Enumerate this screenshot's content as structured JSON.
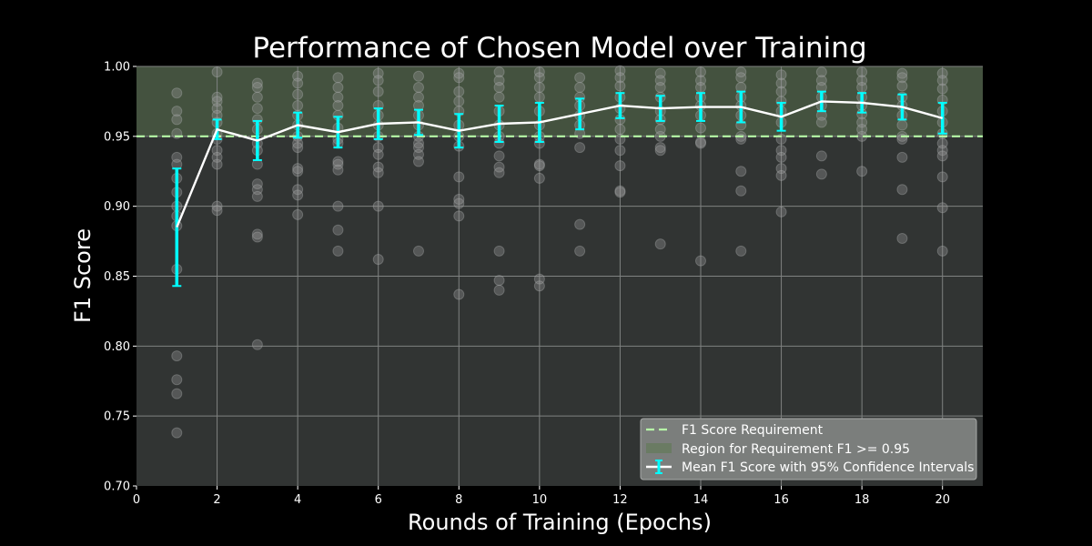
{
  "chart_data": {
    "type": "line",
    "title": "Performance of Chosen Model over Training",
    "xlabel": "Rounds of Training (Epochs)",
    "ylabel": "F1 Score",
    "xlim": [
      0,
      21
    ],
    "ylim": [
      0.7,
      1.0
    ],
    "xticks": [
      0,
      2,
      4,
      6,
      8,
      10,
      12,
      14,
      16,
      18,
      20
    ],
    "xtick_labels": [
      "0",
      "2",
      "4",
      "6",
      "8",
      "10",
      "12",
      "14",
      "16",
      "18",
      "20"
    ],
    "yticks": [
      0.7,
      0.75,
      0.8,
      0.85,
      0.9,
      0.95,
      1.0
    ],
    "ytick_labels": [
      "0.70",
      "0.75",
      "0.80",
      "0.85",
      "0.90",
      "0.95",
      "1.00"
    ],
    "grid": true,
    "legend_position": "bottom-right",
    "requirement": {
      "value": 0.95,
      "label": "F1 Score Requirement",
      "color": "#b8ffa8"
    },
    "region": {
      "from": 0.95,
      "to": 1.0,
      "label": "Region for Requirement F1 >= 0.95",
      "color": "#556b4a"
    },
    "mean_series": {
      "label": "Mean F1 Score with 95% Confidence Intervals",
      "line_color": "#ffffff",
      "errorbar_color": "#00ffff",
      "x": [
        1,
        2,
        3,
        4,
        5,
        6,
        7,
        8,
        9,
        10,
        11,
        12,
        13,
        14,
        15,
        16,
        17,
        18,
        19,
        20
      ],
      "y": [
        0.885,
        0.955,
        0.947,
        0.958,
        0.953,
        0.959,
        0.96,
        0.954,
        0.959,
        0.96,
        0.966,
        0.972,
        0.97,
        0.971,
        0.971,
        0.964,
        0.975,
        0.974,
        0.971,
        0.963
      ],
      "ci_low": [
        0.843,
        0.948,
        0.933,
        0.949,
        0.942,
        0.948,
        0.951,
        0.942,
        0.946,
        0.946,
        0.955,
        0.963,
        0.961,
        0.961,
        0.96,
        0.954,
        0.968,
        0.967,
        0.962,
        0.952
      ],
      "ci_high": [
        0.927,
        0.962,
        0.961,
        0.967,
        0.964,
        0.97,
        0.969,
        0.966,
        0.972,
        0.974,
        0.977,
        0.981,
        0.979,
        0.981,
        0.982,
        0.974,
        0.982,
        0.981,
        0.98,
        0.974
      ]
    },
    "trial_points": [
      {
        "x": 1,
        "y": [
          0.981,
          0.968,
          0.962,
          0.952,
          0.935,
          0.93,
          0.92,
          0.91,
          0.9,
          0.893,
          0.886,
          0.855,
          0.793,
          0.776,
          0.766,
          0.738
        ]
      },
      {
        "x": 2,
        "y": [
          0.996,
          0.978,
          0.975,
          0.97,
          0.965,
          0.96,
          0.952,
          0.948,
          0.94,
          0.935,
          0.93,
          0.9,
          0.897
        ]
      },
      {
        "x": 3,
        "y": [
          0.988,
          0.985,
          0.978,
          0.97,
          0.962,
          0.955,
          0.945,
          0.94,
          0.93,
          0.916,
          0.912,
          0.907,
          0.88,
          0.878,
          0.801
        ]
      },
      {
        "x": 4,
        "y": [
          0.993,
          0.988,
          0.98,
          0.972,
          0.965,
          0.958,
          0.95,
          0.945,
          0.942,
          0.927,
          0.925,
          0.912,
          0.908,
          0.894
        ]
      },
      {
        "x": 5,
        "y": [
          0.992,
          0.985,
          0.978,
          0.972,
          0.965,
          0.956,
          0.948,
          0.945,
          0.932,
          0.93,
          0.926,
          0.9,
          0.883,
          0.868
        ]
      },
      {
        "x": 6,
        "y": [
          0.995,
          0.99,
          0.982,
          0.972,
          0.965,
          0.958,
          0.95,
          0.942,
          0.937,
          0.928,
          0.924,
          0.9,
          0.862
        ]
      },
      {
        "x": 7,
        "y": [
          0.993,
          0.985,
          0.978,
          0.972,
          0.965,
          0.958,
          0.95,
          0.945,
          0.942,
          0.937,
          0.932,
          0.868
        ]
      },
      {
        "x": 8,
        "y": [
          0.995,
          0.992,
          0.982,
          0.975,
          0.968,
          0.958,
          0.95,
          0.943,
          0.921,
          0.905,
          0.902,
          0.893,
          0.837
        ]
      },
      {
        "x": 9,
        "y": [
          0.996,
          0.99,
          0.985,
          0.978,
          0.968,
          0.958,
          0.95,
          0.945,
          0.936,
          0.928,
          0.924,
          0.868,
          0.847,
          0.84
        ]
      },
      {
        "x": 10,
        "y": [
          0.996,
          0.992,
          0.985,
          0.978,
          0.968,
          0.958,
          0.95,
          0.945,
          0.93,
          0.929,
          0.92,
          0.848,
          0.843
        ]
      },
      {
        "x": 11,
        "y": [
          0.992,
          0.985,
          0.978,
          0.972,
          0.965,
          0.958,
          0.952,
          0.942,
          0.887,
          0.868
        ]
      },
      {
        "x": 12,
        "y": [
          0.997,
          0.992,
          0.986,
          0.978,
          0.97,
          0.962,
          0.955,
          0.948,
          0.94,
          0.929,
          0.911,
          0.91
        ]
      },
      {
        "x": 13,
        "y": [
          0.995,
          0.99,
          0.985,
          0.978,
          0.968,
          0.962,
          0.955,
          0.95,
          0.942,
          0.94,
          0.873
        ]
      },
      {
        "x": 14,
        "y": [
          0.996,
          0.99,
          0.985,
          0.978,
          0.972,
          0.965,
          0.956,
          0.946,
          0.945,
          0.861
        ]
      },
      {
        "x": 15,
        "y": [
          0.996,
          0.992,
          0.985,
          0.978,
          0.972,
          0.965,
          0.958,
          0.95,
          0.948,
          0.925,
          0.911,
          0.868
        ]
      },
      {
        "x": 16,
        "y": [
          0.994,
          0.988,
          0.982,
          0.975,
          0.968,
          0.96,
          0.948,
          0.94,
          0.935,
          0.927,
          0.922,
          0.896
        ]
      },
      {
        "x": 17,
        "y": [
          0.996,
          0.99,
          0.985,
          0.978,
          0.972,
          0.965,
          0.96,
          0.936,
          0.923
        ]
      },
      {
        "x": 18,
        "y": [
          0.996,
          0.99,
          0.985,
          0.978,
          0.972,
          0.966,
          0.96,
          0.955,
          0.95,
          0.925
        ]
      },
      {
        "x": 19,
        "y": [
          0.995,
          0.992,
          0.986,
          0.978,
          0.972,
          0.965,
          0.958,
          0.95,
          0.948,
          0.935,
          0.912,
          0.877
        ]
      },
      {
        "x": 20,
        "y": [
          0.995,
          0.99,
          0.984,
          0.976,
          0.968,
          0.96,
          0.952,
          0.945,
          0.94,
          0.936,
          0.921,
          0.899,
          0.868
        ]
      }
    ]
  }
}
